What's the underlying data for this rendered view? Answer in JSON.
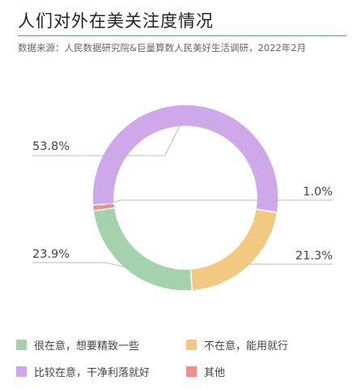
{
  "header": {
    "title": "人们对外在美关注度情况",
    "source": "数据来源：人民数据研究院&巨量算数人民美好生活调研，2022年2月"
  },
  "chart_data": {
    "type": "pie",
    "variant": "donut",
    "categories": [
      "比较在意，干净利落就好",
      "不在意，能用就行",
      "很在意，想要精致一些",
      "其他"
    ],
    "values": [
      53.8,
      21.3,
      23.9,
      1.0
    ],
    "labels": [
      "53.8%",
      "21.3%",
      "23.9%",
      "1.0%"
    ],
    "colors": [
      "#cfa8ea",
      "#f2c982",
      "#a5d1ad",
      "#ef8e8e"
    ],
    "legend_placement": "bottom"
  },
  "legend": [
    {
      "label": "很在意，想要精致一些",
      "color": "#a5d1ad"
    },
    {
      "label": "不在意，能用就行",
      "color": "#f2c982"
    },
    {
      "label": "比较在意，干净利落就好",
      "color": "#cfa8ea"
    },
    {
      "label": "其他",
      "color": "#ef8e8e"
    }
  ]
}
